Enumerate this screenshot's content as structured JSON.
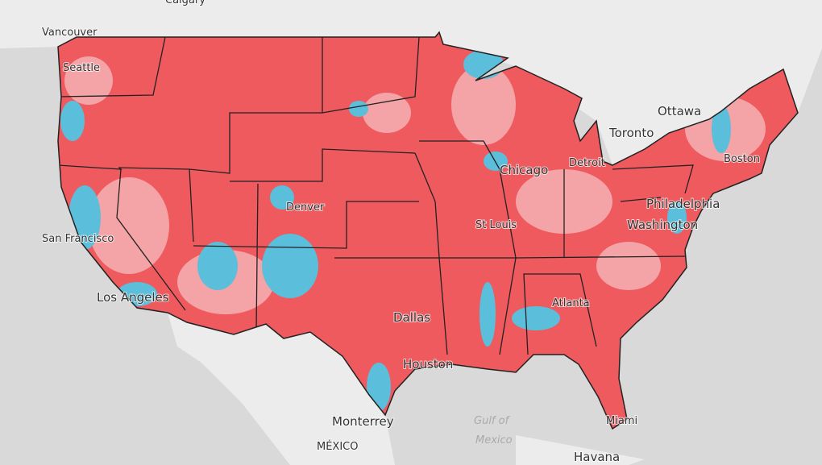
{
  "labels": {
    "calgary": "Calgary",
    "vancouver": "Vancouver",
    "seattle": "Seattle",
    "san_francisco": "San Francisco",
    "los_angeles": "Los Angeles",
    "denver": "Denver",
    "dallas": "Dallas",
    "houston": "Houston",
    "monterrey": "Monterrey",
    "mexico": "MÉXICO",
    "gulf_1": "Gulf of",
    "gulf_2": "Mexico",
    "havana": "Havana",
    "miami": "Miami",
    "atlanta": "Atlanta",
    "st_louis": "St Louis",
    "chicago": "Chicago",
    "detroit": "Detroit",
    "toronto": "Toronto",
    "ottawa": "Ottawa",
    "boston": "Boston",
    "philadelphia": "Philadelphia",
    "washington": "Washington"
  }
}
